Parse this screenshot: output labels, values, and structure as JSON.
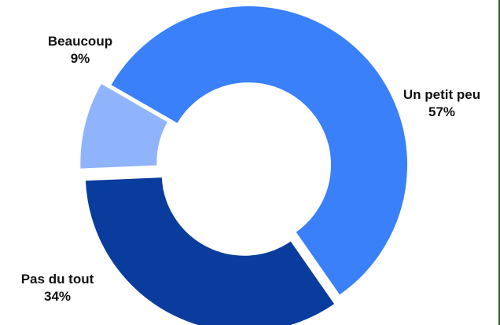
{
  "chart_data": {
    "type": "pie",
    "style": "donut",
    "title": "",
    "categories": [
      "Un petit peu",
      "Pas du tout",
      "Beaucoup"
    ],
    "values": [
      57,
      34,
      9
    ],
    "value_labels": [
      "57%",
      "34%",
      "9%"
    ],
    "unit": "%",
    "colors": [
      "#3a80f9",
      "#0a3c9e",
      "#8fb4fb"
    ],
    "exploded": [
      "Pas du tout",
      "Beaucoup"
    ],
    "legend": "none"
  },
  "colors": {
    "background": "#ffffff",
    "edge_line": "#2e6b24"
  }
}
